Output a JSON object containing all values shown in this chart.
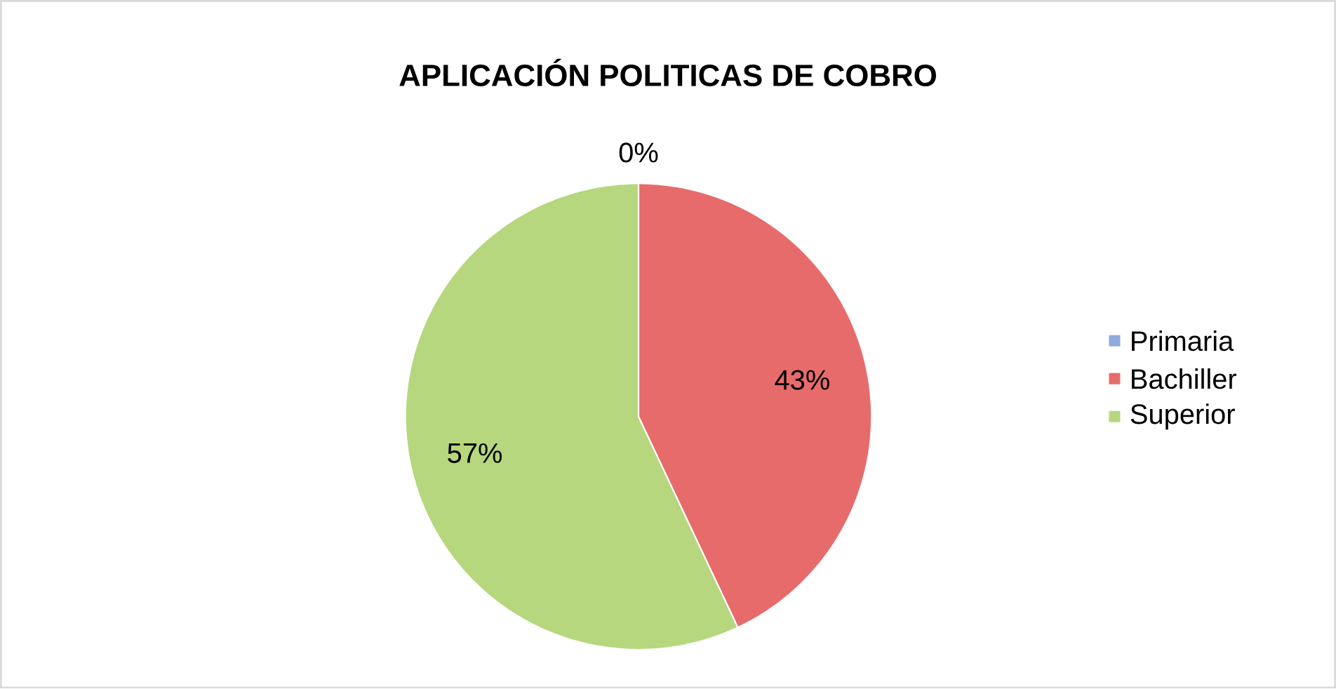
{
  "chart_data": {
    "type": "pie",
    "title": "APLICACIÓN POLITICAS DE COBRO",
    "categories": [
      "Primaria",
      "Bachiller",
      "Superior"
    ],
    "values": [
      0,
      43,
      57
    ],
    "colors": [
      "#8faadc",
      "#e86b6b",
      "#b6d77e"
    ],
    "value_labels": [
      "0%",
      "43%",
      "57%"
    ],
    "legend": "right"
  }
}
